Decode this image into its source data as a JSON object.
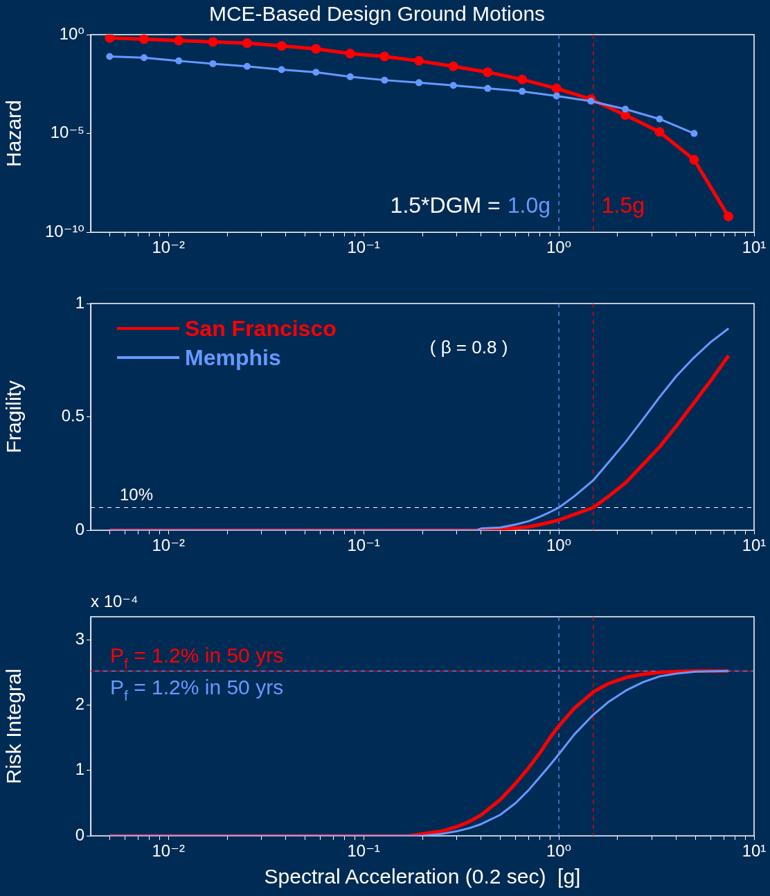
{
  "chart_data": [
    {
      "type": "line",
      "title": "MCE-Based Design Ground Motions",
      "ylabel": "Hazard",
      "log": "xy",
      "marker": "circle",
      "xlim": [
        0.004,
        10
      ],
      "ylim": [
        1e-10,
        1
      ],
      "xticks": [
        {
          "value": 0.005,
          "label": null
        },
        {
          "value": 0.006,
          "label": null
        },
        {
          "value": 0.007,
          "label": null
        },
        {
          "value": 0.008,
          "label": null
        },
        {
          "value": 0.009,
          "label": null
        },
        {
          "value": 0.01,
          "label": "10⁻²"
        },
        {
          "value": 0.02,
          "label": null
        },
        {
          "value": 0.03,
          "label": null
        },
        {
          "value": 0.04,
          "label": null
        },
        {
          "value": 0.05,
          "label": null
        },
        {
          "value": 0.06,
          "label": null
        },
        {
          "value": 0.07,
          "label": null
        },
        {
          "value": 0.08,
          "label": null
        },
        {
          "value": 0.09,
          "label": null
        },
        {
          "value": 0.1,
          "label": "10⁻¹"
        },
        {
          "value": 0.2,
          "label": null
        },
        {
          "value": 0.3,
          "label": null
        },
        {
          "value": 0.4,
          "label": null
        },
        {
          "value": 0.5,
          "label": null
        },
        {
          "value": 0.6,
          "label": null
        },
        {
          "value": 0.7,
          "label": null
        },
        {
          "value": 0.8,
          "label": null
        },
        {
          "value": 0.9,
          "label": null
        },
        {
          "value": 1,
          "label": "10⁰"
        },
        {
          "value": 2,
          "label": null
        },
        {
          "value": 3,
          "label": null
        },
        {
          "value": 4,
          "label": null
        },
        {
          "value": 5,
          "label": null
        },
        {
          "value": 6,
          "label": null
        },
        {
          "value": 7,
          "label": null
        },
        {
          "value": 8,
          "label": null
        },
        {
          "value": 9,
          "label": null
        },
        {
          "value": 10,
          "label": "10¹"
        }
      ],
      "yticks": [
        {
          "value": 1e-10,
          "label": "10⁻¹⁰"
        },
        {
          "value": 1e-05,
          "label": "10⁻⁵"
        },
        {
          "value": 1,
          "label": "10⁰"
        }
      ],
      "series": [
        {
          "color": "#ff0000",
          "x": [
            0.005,
            0.0075,
            0.0113,
            0.0169,
            0.0253,
            0.038,
            0.057,
            0.0854,
            0.128,
            0.192,
            0.288,
            0.432,
            0.649,
            0.973,
            1.46,
            2.19,
            3.28,
            4.93,
            7.39
          ],
          "values": [
            0.68,
            0.59,
            0.5,
            0.43,
            0.37,
            0.27,
            0.19,
            0.11,
            0.079,
            0.047,
            0.025,
            0.0126,
            0.0054,
            0.0019,
            0.00054,
            8.5e-05,
            1.2e-05,
            4.7e-07,
            6.3e-10
          ]
        },
        {
          "color": "#6699ff",
          "x": [
            0.005,
            0.0075,
            0.0113,
            0.0169,
            0.0253,
            0.038,
            0.057,
            0.0854,
            0.128,
            0.192,
            0.288,
            0.432,
            0.649,
            0.973,
            1.46,
            2.19,
            3.28,
            4.93
          ],
          "values": [
            0.079,
            0.068,
            0.047,
            0.034,
            0.025,
            0.017,
            0.0126,
            0.0074,
            0.005,
            0.0037,
            0.0027,
            0.0019,
            0.00135,
            0.00079,
            0.00043,
            0.00017,
            5.4e-05,
            1e-05
          ]
        }
      ],
      "ref_lines": [
        {
          "axis": "x",
          "value": 1,
          "label": "1.0g",
          "color": "#6699ff",
          "line_style": "dashed"
        },
        {
          "axis": "x",
          "value": 1.5,
          "label": "1.5g",
          "color": "#ff0000",
          "line_style": "dashed"
        }
      ],
      "annotations": [
        "1.5*DGM ="
      ]
    },
    {
      "type": "line",
      "ylabel": "Fragility",
      "log": "x",
      "legend": "top left",
      "xlim": [
        0.004,
        10
      ],
      "ylim": [
        0,
        1
      ],
      "xticks": [
        {
          "value": 0.005,
          "label": null
        },
        {
          "value": 0.006,
          "label": null
        },
        {
          "value": 0.007,
          "label": null
        },
        {
          "value": 0.008,
          "label": null
        },
        {
          "value": 0.009,
          "label": null
        },
        {
          "value": 0.01,
          "label": "10⁻²"
        },
        {
          "value": 0.02,
          "label": null
        },
        {
          "value": 0.03,
          "label": null
        },
        {
          "value": 0.04,
          "label": null
        },
        {
          "value": 0.05,
          "label": null
        },
        {
          "value": 0.06,
          "label": null
        },
        {
          "value": 0.07,
          "label": null
        },
        {
          "value": 0.08,
          "label": null
        },
        {
          "value": 0.09,
          "label": null
        },
        {
          "value": 0.1,
          "label": "10⁻¹"
        },
        {
          "value": 0.2,
          "label": null
        },
        {
          "value": 0.3,
          "label": null
        },
        {
          "value": 0.4,
          "label": null
        },
        {
          "value": 0.5,
          "label": null
        },
        {
          "value": 0.6,
          "label": null
        },
        {
          "value": 0.7,
          "label": null
        },
        {
          "value": 0.8,
          "label": null
        },
        {
          "value": 0.9,
          "label": null
        },
        {
          "value": 1,
          "label": "10⁰"
        },
        {
          "value": 2,
          "label": null
        },
        {
          "value": 3,
          "label": null
        },
        {
          "value": 4,
          "label": null
        },
        {
          "value": 5,
          "label": null
        },
        {
          "value": 6,
          "label": null
        },
        {
          "value": 7,
          "label": null
        },
        {
          "value": 8,
          "label": null
        },
        {
          "value": 9,
          "label": null
        },
        {
          "value": 10,
          "label": "10¹"
        }
      ],
      "yticks": [
        0,
        0.5,
        1
      ],
      "series": [
        {
          "name": "San Francisco",
          "color": "#ff0000",
          "x": [
            0.005,
            0.1,
            0.4,
            0.5,
            0.6,
            0.7,
            0.8,
            0.9,
            1.0,
            1.2,
            1.5,
            1.8,
            2.2,
            2.7,
            3.3,
            4.0,
            4.9,
            6.0,
            7.4
          ],
          "values": [
            0,
            0,
            0,
            0.003,
            0.01,
            0.015,
            0.025,
            0.035,
            0.045,
            0.07,
            0.1,
            0.15,
            0.21,
            0.29,
            0.37,
            0.46,
            0.56,
            0.66,
            0.77
          ]
        },
        {
          "name": "Memphis",
          "color": "#6699ff",
          "x": [
            0.005,
            0.1,
            0.38,
            0.4,
            0.5,
            0.6,
            0.7,
            0.8,
            0.9,
            1.0,
            1.2,
            1.5,
            1.8,
            2.2,
            2.7,
            3.3,
            4.0,
            4.9,
            6.0,
            7.4
          ],
          "values": [
            0,
            0,
            0,
            0.008,
            0.012,
            0.025,
            0.04,
            0.06,
            0.08,
            0.1,
            0.15,
            0.22,
            0.3,
            0.39,
            0.49,
            0.59,
            0.68,
            0.76,
            0.83,
            0.89
          ]
        }
      ],
      "ref_lines": [
        {
          "axis": "x",
          "value": 1,
          "color": "#6699ff",
          "line_style": "dashed"
        },
        {
          "axis": "x",
          "value": 1.5,
          "color": "#ff0000",
          "line_style": "dashed"
        },
        {
          "axis": "y",
          "value": 0.1,
          "label": "10%",
          "color": "#ffffff",
          "line_style": "dashed"
        }
      ],
      "annotations": [
        "( β = 0.8 )"
      ]
    },
    {
      "type": "line",
      "ylabel": "Risk Integral",
      "xlabel": "Spectral Acceleration (0.2 sec)  [g]",
      "log": "x",
      "xlim": [
        0.004,
        10
      ],
      "ylim": [
        0,
        3.35
      ],
      "xticks": [
        {
          "value": 0.005,
          "label": null
        },
        {
          "value": 0.006,
          "label": null
        },
        {
          "value": 0.007,
          "label": null
        },
        {
          "value": 0.008,
          "label": null
        },
        {
          "value": 0.009,
          "label": null
        },
        {
          "value": 0.01,
          "label": "10⁻²"
        },
        {
          "value": 0.02,
          "label": null
        },
        {
          "value": 0.03,
          "label": null
        },
        {
          "value": 0.04,
          "label": null
        },
        {
          "value": 0.05,
          "label": null
        },
        {
          "value": 0.06,
          "label": null
        },
        {
          "value": 0.07,
          "label": null
        },
        {
          "value": 0.08,
          "label": null
        },
        {
          "value": 0.09,
          "label": null
        },
        {
          "value": 0.1,
          "label": "10⁻¹"
        },
        {
          "value": 0.2,
          "label": null
        },
        {
          "value": 0.3,
          "label": null
        },
        {
          "value": 0.4,
          "label": null
        },
        {
          "value": 0.5,
          "label": null
        },
        {
          "value": 0.6,
          "label": null
        },
        {
          "value": 0.7,
          "label": null
        },
        {
          "value": 0.8,
          "label": null
        },
        {
          "value": 0.9,
          "label": null
        },
        {
          "value": 1,
          "label": "10⁰"
        },
        {
          "value": 2,
          "label": null
        },
        {
          "value": 3,
          "label": null
        },
        {
          "value": 4,
          "label": null
        },
        {
          "value": 5,
          "label": null
        },
        {
          "value": 6,
          "label": null
        },
        {
          "value": 7,
          "label": null
        },
        {
          "value": 8,
          "label": null
        },
        {
          "value": 9,
          "label": null
        },
        {
          "value": 10,
          "label": "10¹"
        }
      ],
      "yticks": [
        0,
        1,
        2,
        3
      ],
      "series": [
        {
          "color": "#ff0000",
          "x": [
            0.005,
            0.17,
            0.2,
            0.25,
            0.3,
            0.35,
            0.4,
            0.5,
            0.6,
            0.7,
            0.8,
            0.9,
            1.0,
            1.2,
            1.5,
            1.8,
            2.2,
            2.7,
            3.3,
            4.0,
            5.0,
            7.4
          ],
          "values": [
            0,
            0,
            0.03,
            0.07,
            0.14,
            0.22,
            0.32,
            0.55,
            0.8,
            1.04,
            1.27,
            1.5,
            1.68,
            1.95,
            2.2,
            2.33,
            2.42,
            2.47,
            2.5,
            2.51,
            2.52,
            2.52
          ]
        },
        {
          "color": "#6699ff",
          "x": [
            0.005,
            0.2,
            0.25,
            0.3,
            0.35,
            0.4,
            0.5,
            0.6,
            0.7,
            0.8,
            0.9,
            1.0,
            1.2,
            1.5,
            1.8,
            2.2,
            2.7,
            3.3,
            4.0,
            5.0,
            7.4
          ],
          "values": [
            0,
            0,
            0.03,
            0.07,
            0.12,
            0.18,
            0.32,
            0.5,
            0.7,
            0.9,
            1.08,
            1.25,
            1.55,
            1.85,
            2.05,
            2.22,
            2.35,
            2.44,
            2.48,
            2.51,
            2.52
          ]
        }
      ],
      "ref_lines": [
        {
          "axis": "x",
          "value": 1,
          "color": "#6699ff",
          "line_style": "dashed"
        },
        {
          "axis": "x",
          "value": 1.5,
          "color": "#ff0000",
          "line_style": "dashed"
        },
        {
          "axis": "y",
          "value": 2.52,
          "color": "#ff0000",
          "line_style": "dashed"
        },
        {
          "axis": "y",
          "value": 2.52,
          "color": "#6699ff",
          "line_style": "dashed"
        }
      ],
      "annotations": [
        "x 10⁻⁴",
        "P$_{f}$ = 1.2% in 50 yrs",
        "P$_{f}$ = 1.2% in 50 yrs"
      ]
    }
  ]
}
